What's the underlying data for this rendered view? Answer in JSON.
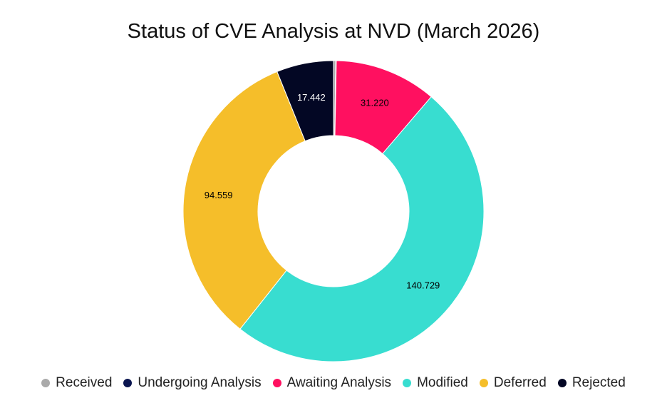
{
  "chart_data": {
    "type": "pie",
    "variant": "donut",
    "title": "Status of CVE Analysis at NVD (March 2026)",
    "categories": [
      "Received",
      "Undergoing Analysis",
      "Awaiting Analysis",
      "Modified",
      "Deferred",
      "Rejected"
    ],
    "values": [
      700,
      150,
      31220,
      140729,
      94559,
      17442
    ],
    "value_labels": [
      "",
      "",
      "31.220",
      "140.729",
      "94.559",
      "17.442"
    ],
    "colors": [
      "#aaaaaa",
      "#0b1650",
      "#ff1060",
      "#38ddd0",
      "#f5be2a",
      "#030724"
    ],
    "label_colors": [
      "#000000",
      "#ffffff",
      "#000000",
      "#000000",
      "#000000",
      "#ffffff"
    ],
    "legend_position": "bottom"
  }
}
